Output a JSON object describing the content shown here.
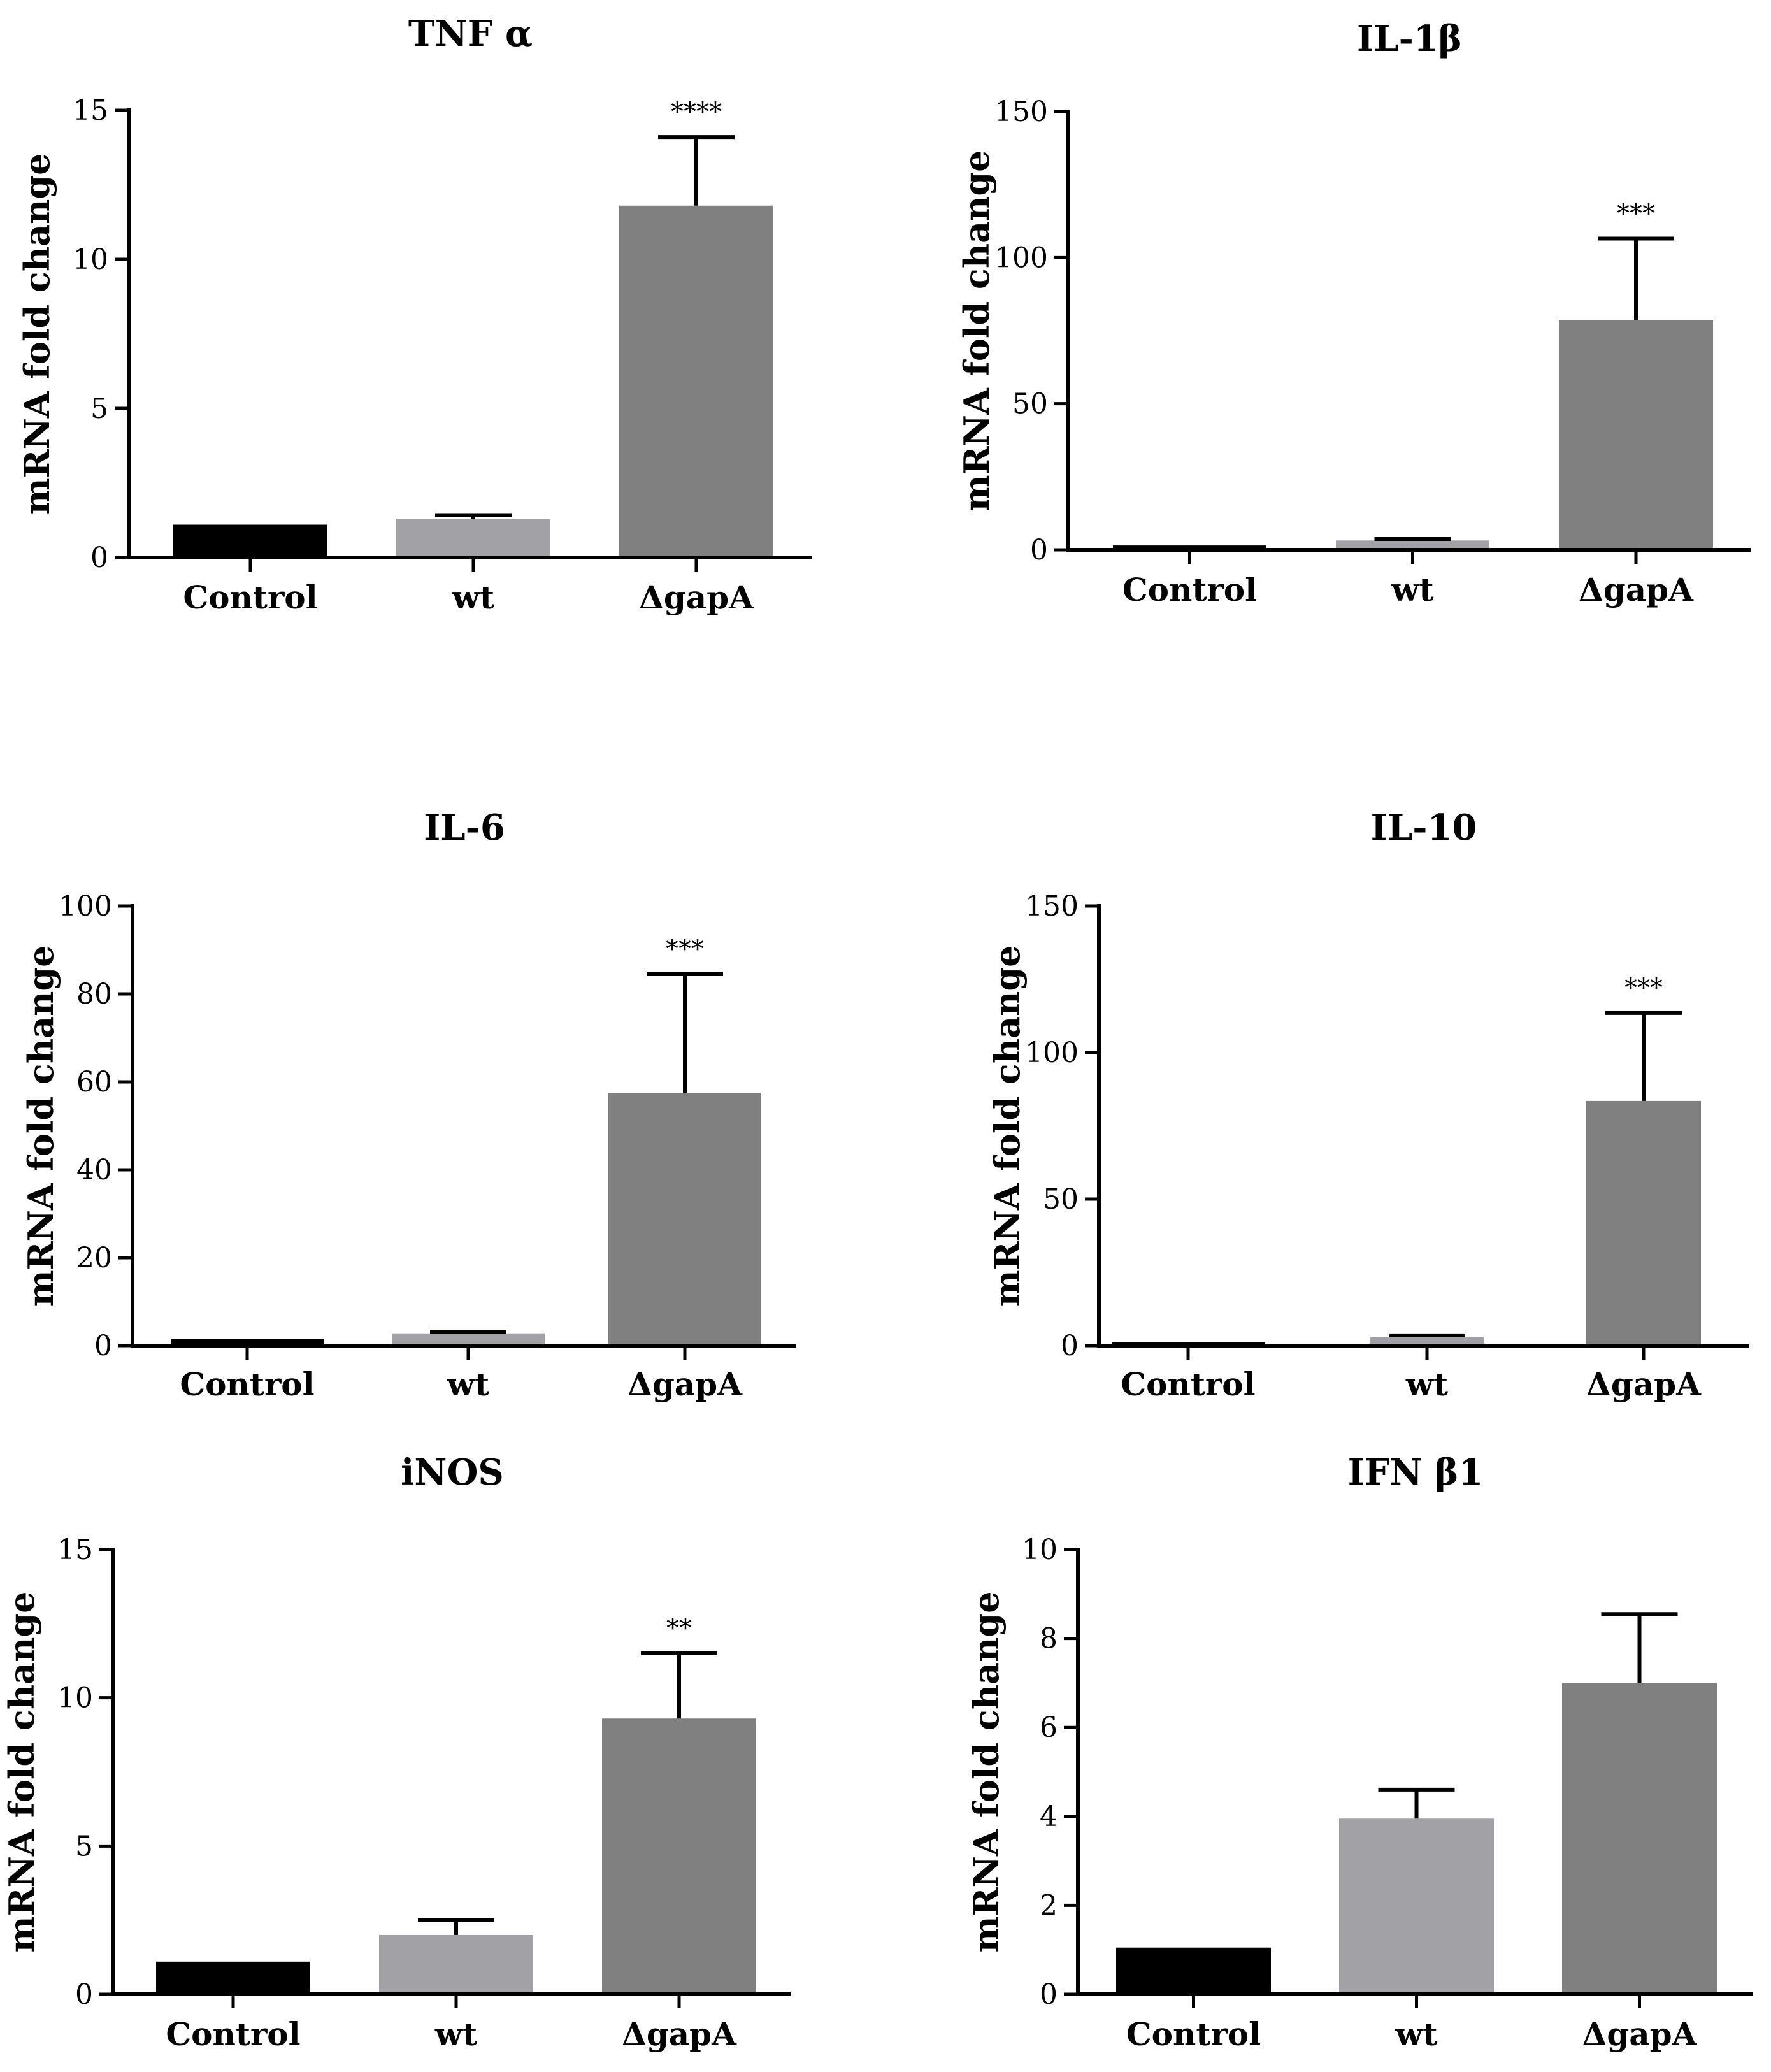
{
  "colors": {
    "control": "#000000",
    "wt": "#a2a2a6",
    "gapA": "#808080",
    "axis": "#000000"
  },
  "chart_data": [
    {
      "type": "bar",
      "title": "TNF α",
      "ylabel": "mRNA fold change",
      "xlabel": "",
      "categories": [
        "Control",
        "wt",
        "ΔgapA"
      ],
      "values": [
        1.1,
        1.3,
        11.8
      ],
      "errors": [
        0,
        0.12,
        2.3
      ],
      "significance": [
        "",
        "",
        "****"
      ],
      "ylim": [
        0,
        15
      ],
      "yticks": [
        0,
        5,
        10,
        15
      ]
    },
    {
      "type": "bar",
      "title": "IL-1β",
      "ylabel": "mRNA fold change",
      "xlabel": "",
      "categories": [
        "Control",
        "wt",
        "ΔgapA"
      ],
      "values": [
        1.5,
        3.2,
        78.5
      ],
      "errors": [
        0,
        0.5,
        28
      ],
      "significance": [
        "",
        "",
        "***"
      ],
      "ylim": [
        0,
        150
      ],
      "yticks": [
        0,
        50,
        100,
        150
      ]
    },
    {
      "type": "bar",
      "title": "IL-6",
      "ylabel": "mRNA fold change",
      "xlabel": "",
      "categories": [
        "Control",
        "wt",
        "ΔgapA"
      ],
      "values": [
        1.5,
        2.8,
        57.5
      ],
      "errors": [
        0,
        0.3,
        27
      ],
      "significance": [
        "",
        "",
        "***"
      ],
      "ylim": [
        0,
        100
      ],
      "yticks": [
        0,
        20,
        40,
        60,
        80,
        100
      ]
    },
    {
      "type": "bar",
      "title": "IL-10",
      "ylabel": "mRNA fold change",
      "xlabel": "",
      "categories": [
        "Control",
        "wt",
        "ΔgapA"
      ],
      "values": [
        1.2,
        3.0,
        83.5
      ],
      "errors": [
        0,
        0.5,
        30
      ],
      "significance": [
        "",
        "",
        "***"
      ],
      "ylim": [
        0,
        150
      ],
      "yticks": [
        0,
        50,
        100,
        150
      ]
    },
    {
      "type": "bar",
      "title": "iNOS",
      "ylabel": "mRNA fold change",
      "xlabel": "",
      "categories": [
        "Control",
        "wt",
        "ΔgapA"
      ],
      "values": [
        1.1,
        2.0,
        9.3
      ],
      "errors": [
        0,
        0.5,
        2.2
      ],
      "significance": [
        "",
        "",
        "**"
      ],
      "ylim": [
        0,
        15
      ],
      "yticks": [
        0,
        5,
        10,
        15
      ]
    },
    {
      "type": "bar",
      "title": "IFN β1",
      "ylabel": "mRNA fold change",
      "xlabel": "",
      "categories": [
        "Control",
        "wt",
        "ΔgapA"
      ],
      "values": [
        1.05,
        3.95,
        7.0
      ],
      "errors": [
        0,
        0.65,
        1.55
      ],
      "significance": [
        "",
        "",
        ""
      ],
      "ylim": [
        0,
        10
      ],
      "yticks": [
        0,
        2,
        4,
        6,
        8,
        10
      ]
    }
  ]
}
